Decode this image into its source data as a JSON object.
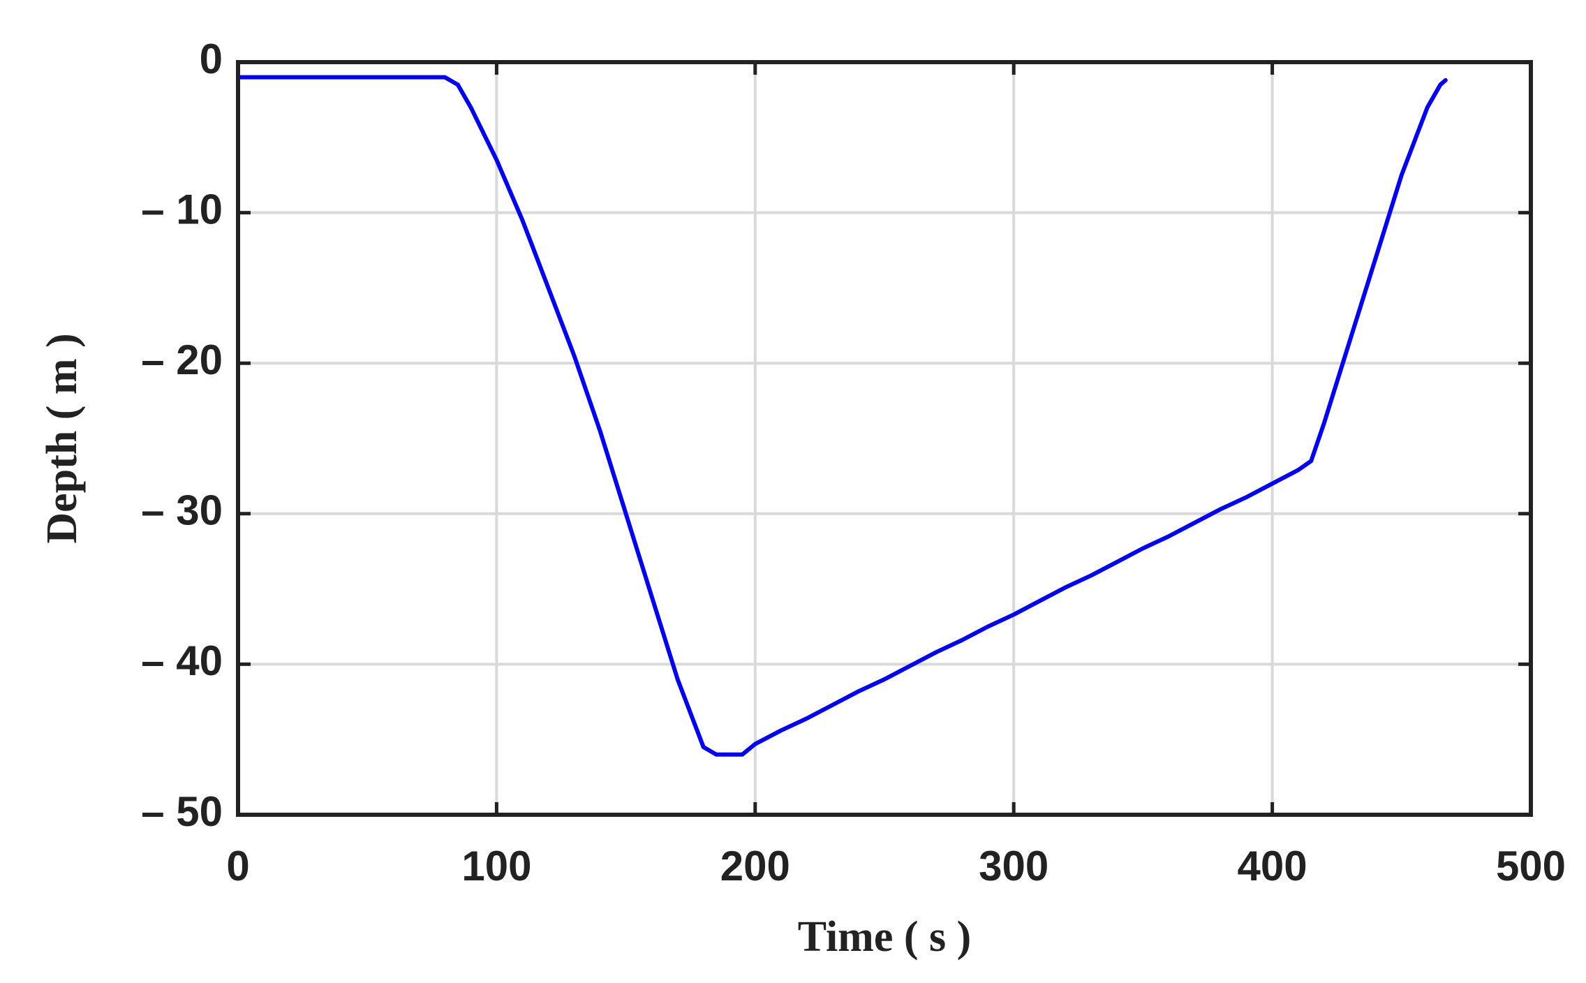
{
  "chart_data": {
    "type": "line",
    "xlabel": "Time ( s )",
    "ylabel": "Depth ( m )",
    "x": [
      0,
      80,
      85,
      90,
      100,
      110,
      120,
      130,
      140,
      150,
      160,
      170,
      180,
      185,
      195,
      200,
      210,
      220,
      230,
      240,
      250,
      260,
      270,
      280,
      290,
      300,
      310,
      320,
      330,
      340,
      350,
      360,
      370,
      380,
      390,
      400,
      410,
      415,
      420,
      430,
      440,
      450,
      460,
      465,
      467
    ],
    "values": [
      -1,
      -1,
      -1.5,
      -3,
      -6.5,
      -10.5,
      -15,
      -19.5,
      -24.5,
      -30,
      -35.5,
      -41,
      -45.5,
      -46,
      -46,
      -45.3,
      -44.4,
      -43.6,
      -42.7,
      -41.8,
      -41,
      -40.1,
      -39.2,
      -38.4,
      -37.5,
      -36.7,
      -35.8,
      -34.9,
      -34.1,
      -33.2,
      -32.3,
      -31.5,
      -30.6,
      -29.7,
      -28.9,
      -28,
      -27.1,
      -26.5,
      -24,
      -18.5,
      -13,
      -7.5,
      -3,
      -1.5,
      -1.2
    ],
    "color": "#0000ff",
    "xlim": [
      0,
      500
    ],
    "xticks": [
      0,
      100,
      200,
      300,
      400,
      500
    ],
    "ylim": [
      -50,
      0
    ],
    "yticks": [
      {
        "value": -50,
        "label": "– 50"
      },
      {
        "value": -40,
        "label": "– 40"
      },
      {
        "value": -30,
        "label": "– 30"
      },
      {
        "value": -20,
        "label": "– 20"
      },
      {
        "value": -10,
        "label": "– 10"
      },
      0
    ],
    "grid": true
  }
}
